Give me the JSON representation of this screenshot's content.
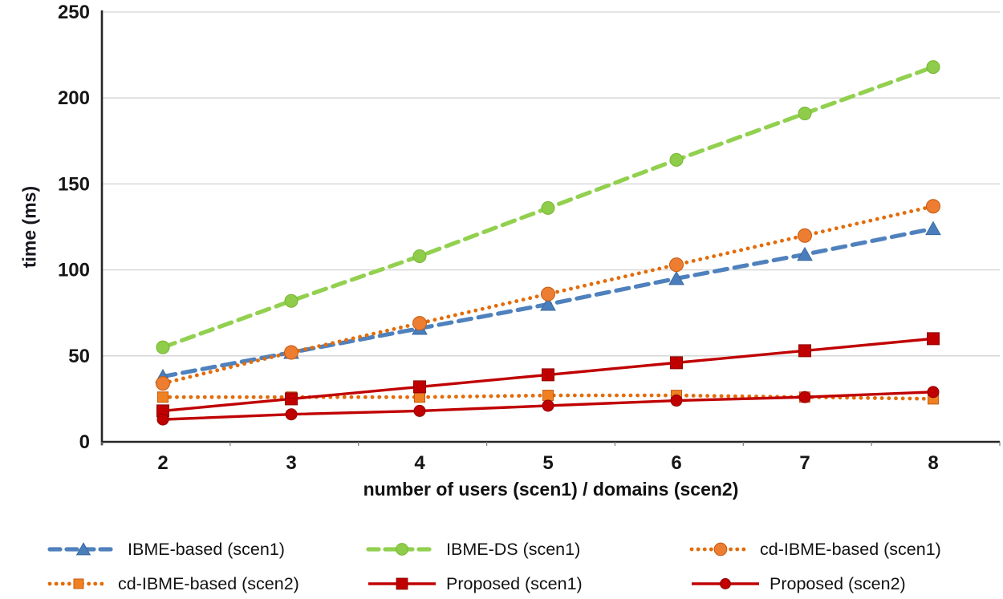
{
  "chart_data": {
    "type": "line",
    "title": "",
    "xlabel": "number of users (scen1) / domains (scen2)",
    "ylabel": "time (ms)",
    "x": [
      2,
      3,
      4,
      5,
      6,
      7,
      8
    ],
    "yticks": [
      0,
      50,
      100,
      150,
      200,
      250
    ],
    "ylim": [
      0,
      250
    ],
    "grid": "horizontal",
    "legend_position": "bottom",
    "series": [
      {
        "name": "IBME-based (scen1)",
        "values": [
          38,
          52,
          66,
          80,
          95,
          109,
          124
        ],
        "color": "#4f81bd",
        "marker_color": "#4a7ebb",
        "marker_edge": "#3a69a0",
        "line": "dash",
        "marker": "triangle",
        "marker_size": 17
      },
      {
        "name": "IBME-DS (scen1)",
        "values": [
          55,
          82,
          108,
          136,
          164,
          191,
          218
        ],
        "color": "#92d04f",
        "marker_color": "#8ecc49",
        "marker_edge": "#76b534",
        "line": "dash",
        "marker": "circle",
        "marker_size": 16
      },
      {
        "name": "cd-IBME-based (scen1)",
        "values": [
          34,
          52,
          69,
          86,
          103,
          120,
          137
        ],
        "color": "#e36c0a",
        "marker_color": "#ed7d31",
        "marker_edge": "#c55a11",
        "line": "dot",
        "marker": "circle",
        "marker_size": 17
      },
      {
        "name": "cd-IBME-based (scen2)",
        "values": [
          26,
          26,
          26,
          27,
          27,
          26,
          25
        ],
        "color": "#e36c0a",
        "marker_color": "#ef8122",
        "marker_edge": "#c55a11",
        "line": "dot",
        "marker": "square",
        "marker_size": 13
      },
      {
        "name": "Proposed (scen1)",
        "values": [
          18,
          25,
          32,
          39,
          46,
          53,
          60
        ],
        "color": "#c00000",
        "marker_color": "#c00000",
        "marker_edge": "#8f0000",
        "line": "solid",
        "marker": "square",
        "marker_size": 15
      },
      {
        "name": "Proposed (scen2)",
        "values": [
          13,
          16,
          18,
          21,
          24,
          26,
          29
        ],
        "color": "#c00000",
        "marker_color": "#c00000",
        "marker_edge": "#8f0000",
        "line": "solid",
        "marker": "circle",
        "marker_size": 14
      }
    ]
  }
}
